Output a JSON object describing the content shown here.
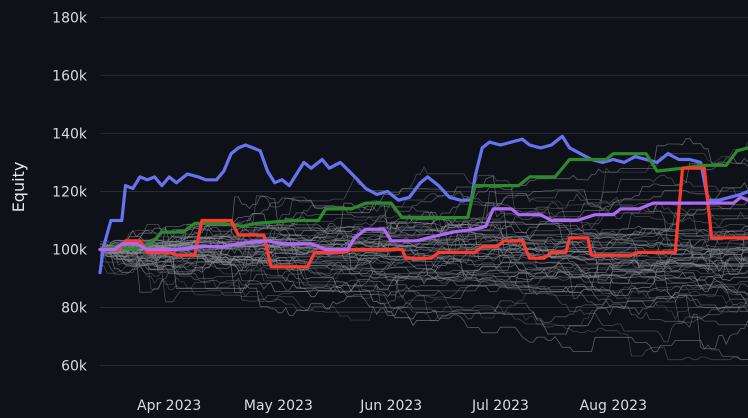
{
  "chart_data": {
    "type": "line",
    "title": "",
    "xlabel": "",
    "ylabel": "Equity",
    "xlim": [
      "2023-03-13",
      "2023-09-07"
    ],
    "ylim": [
      55000,
      186000
    ],
    "y_ticks": [
      60000,
      80000,
      100000,
      120000,
      140000,
      160000,
      180000
    ],
    "y_tick_labels": [
      "60k",
      "80k",
      "100k",
      "120k",
      "140k",
      "160k",
      "180k"
    ],
    "x_ticks": [
      "2023-04-01",
      "2023-05-01",
      "2023-06-01",
      "2023-07-01",
      "2023-08-01"
    ],
    "x_tick_labels": [
      "Apr 2023",
      "May 2023",
      "Jun 2023",
      "Jul 2023",
      "Aug 2023"
    ],
    "grid": true,
    "legend": "none",
    "background": "#0e1117",
    "highlighted_series": [
      {
        "color": "#6873f2",
        "points": [
          [
            "2023-03-13",
            92000
          ],
          [
            "2023-03-14",
            101000
          ],
          [
            "2023-03-16",
            110000
          ],
          [
            "2023-03-19",
            110000
          ],
          [
            "2023-03-20",
            122000
          ],
          [
            "2023-03-22",
            121000
          ],
          [
            "2023-03-24",
            125000
          ],
          [
            "2023-03-26",
            124000
          ],
          [
            "2023-03-28",
            125000
          ],
          [
            "2023-03-30",
            122000
          ],
          [
            "2023-04-01",
            125000
          ],
          [
            "2023-04-03",
            123000
          ],
          [
            "2023-04-06",
            126000
          ],
          [
            "2023-04-09",
            125000
          ],
          [
            "2023-04-11",
            124000
          ],
          [
            "2023-04-14",
            124000
          ],
          [
            "2023-04-16",
            127000
          ],
          [
            "2023-04-18",
            133000
          ],
          [
            "2023-04-20",
            135000
          ],
          [
            "2023-04-22",
            136000
          ],
          [
            "2023-04-24",
            135000
          ],
          [
            "2023-04-26",
            134000
          ],
          [
            "2023-04-28",
            127000
          ],
          [
            "2023-04-30",
            123000
          ],
          [
            "2023-05-02",
            124000
          ],
          [
            "2023-05-04",
            122000
          ],
          [
            "2023-05-06",
            126000
          ],
          [
            "2023-05-08",
            130000
          ],
          [
            "2023-05-10",
            128000
          ],
          [
            "2023-05-13",
            131000
          ],
          [
            "2023-05-15",
            128000
          ],
          [
            "2023-05-18",
            130000
          ],
          [
            "2023-05-22",
            125000
          ],
          [
            "2023-05-25",
            121000
          ],
          [
            "2023-05-28",
            119000
          ],
          [
            "2023-05-31",
            120000
          ],
          [
            "2023-06-03",
            117000
          ],
          [
            "2023-06-06",
            118000
          ],
          [
            "2023-06-09",
            123000
          ],
          [
            "2023-06-11",
            125000
          ],
          [
            "2023-06-14",
            122000
          ],
          [
            "2023-06-17",
            118000
          ],
          [
            "2023-06-20",
            117000
          ],
          [
            "2023-06-23",
            117000
          ],
          [
            "2023-06-24",
            125000
          ],
          [
            "2023-06-26",
            135000
          ],
          [
            "2023-06-28",
            137000
          ],
          [
            "2023-07-01",
            136000
          ],
          [
            "2023-07-04",
            137000
          ],
          [
            "2023-07-07",
            138000
          ],
          [
            "2023-07-09",
            136000
          ],
          [
            "2023-07-12",
            135000
          ],
          [
            "2023-07-15",
            136000
          ],
          [
            "2023-07-18",
            139000
          ],
          [
            "2023-07-20",
            135000
          ],
          [
            "2023-07-23",
            133000
          ],
          [
            "2023-07-26",
            131000
          ],
          [
            "2023-07-29",
            130000
          ],
          [
            "2023-08-01",
            131000
          ],
          [
            "2023-08-04",
            130000
          ],
          [
            "2023-08-07",
            132000
          ],
          [
            "2023-08-10",
            131000
          ],
          [
            "2023-08-13",
            130000
          ],
          [
            "2023-08-16",
            133000
          ],
          [
            "2023-08-19",
            131000
          ],
          [
            "2023-08-22",
            131000
          ],
          [
            "2023-08-25",
            130000
          ],
          [
            "2023-08-27",
            117000
          ],
          [
            "2023-08-30",
            117000
          ],
          [
            "2023-09-02",
            118000
          ],
          [
            "2023-09-05",
            119000
          ],
          [
            "2023-09-07",
            120000
          ]
        ]
      },
      {
        "color": "#2c8a2c",
        "points": [
          [
            "2023-03-13",
            100000
          ],
          [
            "2023-03-17",
            101000
          ],
          [
            "2023-03-22",
            100000
          ],
          [
            "2023-03-27",
            102000
          ],
          [
            "2023-03-30",
            106000
          ],
          [
            "2023-04-05",
            106000
          ],
          [
            "2023-04-08",
            109000
          ],
          [
            "2023-04-16",
            109000
          ],
          [
            "2023-04-21",
            108000
          ],
          [
            "2023-04-25",
            109000
          ],
          [
            "2023-05-05",
            110000
          ],
          [
            "2023-05-12",
            110000
          ],
          [
            "2023-05-14",
            114000
          ],
          [
            "2023-05-21",
            114000
          ],
          [
            "2023-05-25",
            116000
          ],
          [
            "2023-06-01",
            116000
          ],
          [
            "2023-06-04",
            111000
          ],
          [
            "2023-06-22",
            111000
          ],
          [
            "2023-06-24",
            122000
          ],
          [
            "2023-07-06",
            122000
          ],
          [
            "2023-07-09",
            125000
          ],
          [
            "2023-07-16",
            125000
          ],
          [
            "2023-07-20",
            131000
          ],
          [
            "2023-07-30",
            131000
          ],
          [
            "2023-08-01",
            133000
          ],
          [
            "2023-08-10",
            133000
          ],
          [
            "2023-08-13",
            127000
          ],
          [
            "2023-08-20",
            128000
          ],
          [
            "2023-08-25",
            129000
          ],
          [
            "2023-09-01",
            129000
          ],
          [
            "2023-09-04",
            134000
          ],
          [
            "2023-09-07",
            135000
          ]
        ]
      },
      {
        "color": "#ff3b30",
        "points": [
          [
            "2023-03-13",
            100000
          ],
          [
            "2023-03-18",
            100000
          ],
          [
            "2023-03-20",
            103000
          ],
          [
            "2023-03-24",
            103000
          ],
          [
            "2023-03-26",
            99000
          ],
          [
            "2023-04-01",
            99000
          ],
          [
            "2023-04-03",
            98000
          ],
          [
            "2023-04-08",
            98000
          ],
          [
            "2023-04-10",
            110000
          ],
          [
            "2023-04-18",
            110000
          ],
          [
            "2023-04-20",
            105000
          ],
          [
            "2023-04-27",
            105000
          ],
          [
            "2023-04-29",
            94000
          ],
          [
            "2023-05-09",
            94000
          ],
          [
            "2023-05-11",
            99000
          ],
          [
            "2023-05-19",
            99000
          ],
          [
            "2023-05-21",
            100000
          ],
          [
            "2023-06-04",
            100000
          ],
          [
            "2023-06-05",
            97000
          ],
          [
            "2023-06-12",
            97000
          ],
          [
            "2023-06-14",
            99000
          ],
          [
            "2023-06-24",
            99000
          ],
          [
            "2023-06-26",
            101000
          ],
          [
            "2023-06-30",
            101000
          ],
          [
            "2023-07-02",
            103000
          ],
          [
            "2023-07-07",
            103000
          ],
          [
            "2023-07-09",
            97000
          ],
          [
            "2023-07-13",
            97000
          ],
          [
            "2023-07-15",
            99000
          ],
          [
            "2023-07-19",
            99000
          ],
          [
            "2023-07-20",
            104000
          ],
          [
            "2023-07-25",
            104000
          ],
          [
            "2023-07-26",
            98000
          ],
          [
            "2023-08-06",
            98000
          ],
          [
            "2023-08-08",
            99000
          ],
          [
            "2023-08-18",
            99000
          ],
          [
            "2023-08-20",
            128000
          ],
          [
            "2023-08-26",
            128000
          ],
          [
            "2023-08-28",
            104000
          ],
          [
            "2023-09-07",
            104000
          ]
        ]
      },
      {
        "color": "#b069f5",
        "points": [
          [
            "2023-03-13",
            100000
          ],
          [
            "2023-03-17",
            100000
          ],
          [
            "2023-03-19",
            102000
          ],
          [
            "2023-03-23",
            102000
          ],
          [
            "2023-03-26",
            100000
          ],
          [
            "2023-04-03",
            100000
          ],
          [
            "2023-04-10",
            101000
          ],
          [
            "2023-04-16",
            101000
          ],
          [
            "2023-04-20",
            102000
          ],
          [
            "2023-04-28",
            103000
          ],
          [
            "2023-05-02",
            102000
          ],
          [
            "2023-05-10",
            102000
          ],
          [
            "2023-05-14",
            100000
          ],
          [
            "2023-05-20",
            100000
          ],
          [
            "2023-05-22",
            104000
          ],
          [
            "2023-05-25",
            107000
          ],
          [
            "2023-05-30",
            107000
          ],
          [
            "2023-06-01",
            103000
          ],
          [
            "2023-06-08",
            103000
          ],
          [
            "2023-06-11",
            104000
          ],
          [
            "2023-06-18",
            106000
          ],
          [
            "2023-06-24",
            107000
          ],
          [
            "2023-06-27",
            108000
          ],
          [
            "2023-06-29",
            114000
          ],
          [
            "2023-07-04",
            114000
          ],
          [
            "2023-07-06",
            112000
          ],
          [
            "2023-07-12",
            112000
          ],
          [
            "2023-07-15",
            110000
          ],
          [
            "2023-07-22",
            110000
          ],
          [
            "2023-07-27",
            112000
          ],
          [
            "2023-08-01",
            112000
          ],
          [
            "2023-08-03",
            114000
          ],
          [
            "2023-08-08",
            114000
          ],
          [
            "2023-08-12",
            116000
          ],
          [
            "2023-09-03",
            116000
          ],
          [
            "2023-09-05",
            118000
          ],
          [
            "2023-09-07",
            117000
          ]
        ]
      }
    ],
    "background_series": {
      "color": "#8e9299",
      "count": 60,
      "start": 100000,
      "note_count_only": "many thin gray simulated paths"
    }
  }
}
